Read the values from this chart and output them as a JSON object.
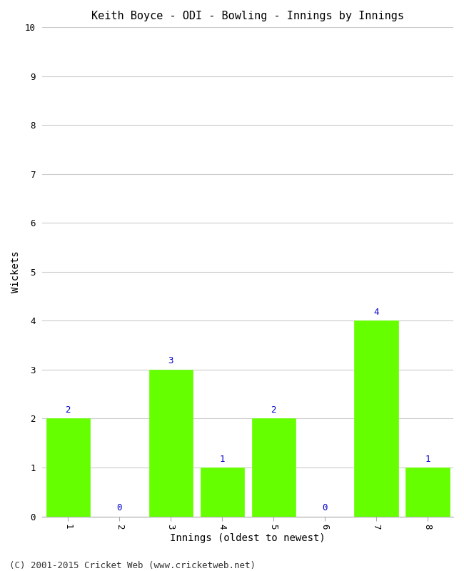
{
  "title": "Keith Boyce - ODI - Bowling - Innings by Innings",
  "xlabel": "Innings (oldest to newest)",
  "ylabel": "Wickets",
  "categories": [
    "1",
    "2",
    "3",
    "4",
    "5",
    "6",
    "7",
    "8"
  ],
  "values": [
    2,
    0,
    3,
    1,
    2,
    0,
    4,
    1
  ],
  "bar_color": "#66ff00",
  "bar_edge_color": "#66ff00",
  "ylim": [
    0,
    10
  ],
  "yticks": [
    0,
    1,
    2,
    3,
    4,
    5,
    6,
    7,
    8,
    9,
    10
  ],
  "label_color": "#0000cc",
  "grid_color": "#cccccc",
  "background_color": "#ffffff",
  "title_fontsize": 11,
  "axis_fontsize": 10,
  "label_fontsize": 9,
  "tick_fontsize": 9,
  "footer_text": "(C) 2001-2015 Cricket Web (www.cricketweb.net)",
  "footer_fontsize": 9,
  "bar_width": 0.85
}
